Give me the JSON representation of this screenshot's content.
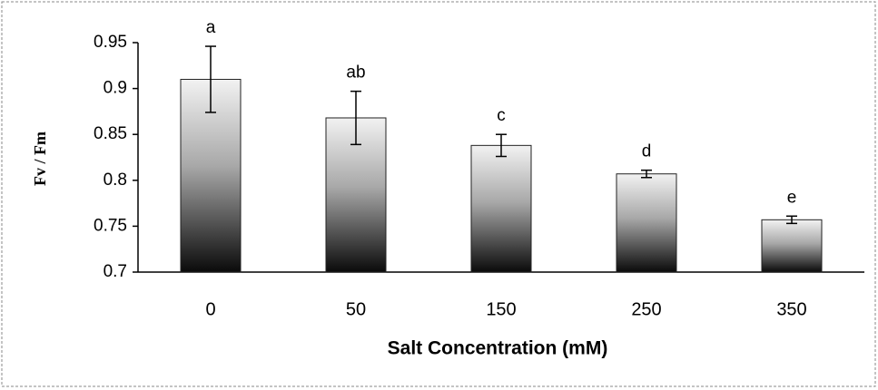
{
  "chart_data": {
    "type": "bar",
    "x_label": "Salt Concentration (mM)",
    "y_label": "Fv / Fm",
    "categories": [
      "0",
      "50",
      "150",
      "250",
      "350"
    ],
    "values": [
      0.91,
      0.868,
      0.838,
      0.807,
      0.757
    ],
    "errors": [
      0.036,
      0.029,
      0.012,
      0.004,
      0.004
    ],
    "annotations": [
      "a",
      "ab",
      "c",
      "d",
      "e"
    ],
    "ylim": [
      0.7,
      0.95
    ],
    "yticks": [
      0.7,
      0.75,
      0.8,
      0.85,
      0.9,
      0.95
    ]
  }
}
